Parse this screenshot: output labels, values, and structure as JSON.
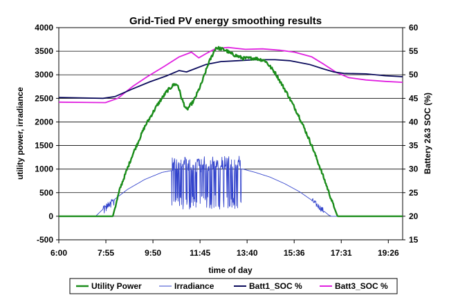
{
  "chart_data": {
    "type": "line",
    "title": "Grid-Tied PV energy smoothing results",
    "xlabel": "time of day",
    "ylabel": "utility power, irradiance",
    "y2label": "Battery 2&3 SOC (%)",
    "x_ticks": [
      "6:00",
      "7:55",
      "9:50",
      "11:45",
      "13:40",
      "15:36",
      "17:31",
      "19:26"
    ],
    "x_range_hours": [
      6.0,
      20.0
    ],
    "ylim": [
      -500,
      4000
    ],
    "y_ticks": [
      -500,
      0,
      500,
      1000,
      1500,
      2000,
      2500,
      3000,
      3500,
      4000
    ],
    "y2lim": [
      15,
      60
    ],
    "y2_ticks": [
      15,
      20,
      25,
      30,
      35,
      40,
      45,
      50,
      55,
      60
    ],
    "grid": true,
    "legend_position": "bottom",
    "series": [
      {
        "name": "Utility Power",
        "axis": "left",
        "color": "#1a8c1a",
        "points": [
          [
            6.0,
            0
          ],
          [
            7.5,
            0
          ],
          [
            8.2,
            0
          ],
          [
            8.5,
            600
          ],
          [
            9.0,
            1300
          ],
          [
            9.5,
            1900
          ],
          [
            10.0,
            2350
          ],
          [
            10.4,
            2650
          ],
          [
            10.7,
            2800
          ],
          [
            10.85,
            2780
          ],
          [
            11.0,
            2500
          ],
          [
            11.2,
            2250
          ],
          [
            11.5,
            2450
          ],
          [
            11.8,
            2800
          ],
          [
            12.1,
            3250
          ],
          [
            12.4,
            3580
          ],
          [
            12.8,
            3520
          ],
          [
            13.0,
            3450
          ],
          [
            13.5,
            3350
          ],
          [
            14.0,
            3350
          ],
          [
            14.4,
            3300
          ],
          [
            14.8,
            3050
          ],
          [
            15.3,
            2600
          ],
          [
            15.8,
            2100
          ],
          [
            16.3,
            1500
          ],
          [
            16.8,
            800
          ],
          [
            17.2,
            200
          ],
          [
            17.35,
            0
          ],
          [
            20.0,
            0
          ]
        ]
      },
      {
        "name": "Irradiance",
        "axis": "left",
        "color": "#3344cc",
        "points": [
          [
            6.0,
            0
          ],
          [
            7.5,
            0
          ],
          [
            7.8,
            150
          ],
          [
            8.2,
            330
          ],
          [
            8.8,
            570
          ],
          [
            9.5,
            780
          ],
          [
            10.2,
            930
          ],
          [
            10.8,
            990
          ],
          [
            11.2,
            1000
          ],
          [
            11.8,
            1010
          ],
          [
            12.5,
            1020
          ],
          [
            13.0,
            1030
          ],
          [
            13.5,
            1000
          ],
          [
            14.0,
            930
          ],
          [
            14.6,
            830
          ],
          [
            15.2,
            690
          ],
          [
            15.8,
            520
          ],
          [
            16.3,
            340
          ],
          [
            16.7,
            150
          ],
          [
            17.0,
            20
          ],
          [
            17.1,
            0
          ],
          [
            20.0,
            0
          ]
        ],
        "noise_window_hours": [
          10.6,
          13.45
        ],
        "noise_low": 150,
        "noise_high": 1280
      },
      {
        "name": "Batt1_SOC %",
        "axis": "right",
        "color": "#0b0b5c",
        "points": [
          [
            6.0,
            45.2
          ],
          [
            7.8,
            45.0
          ],
          [
            8.3,
            45.4
          ],
          [
            9.0,
            47.0
          ],
          [
            9.7,
            48.5
          ],
          [
            10.4,
            49.8
          ],
          [
            10.9,
            50.9
          ],
          [
            11.2,
            50.6
          ],
          [
            11.5,
            51.2
          ],
          [
            12.0,
            52.2
          ],
          [
            12.6,
            52.8
          ],
          [
            13.3,
            53.0
          ],
          [
            14.0,
            53.2
          ],
          [
            14.8,
            53.2
          ],
          [
            15.4,
            53.0
          ],
          [
            16.2,
            52.2
          ],
          [
            16.8,
            51.2
          ],
          [
            17.2,
            50.6
          ],
          [
            17.6,
            50.3
          ],
          [
            18.5,
            50.2
          ],
          [
            19.3,
            49.8
          ],
          [
            20.0,
            49.6
          ]
        ]
      },
      {
        "name": "Batt3_SOC %",
        "axis": "right",
        "color": "#e020e0",
        "points": [
          [
            6.0,
            44.2
          ],
          [
            7.9,
            44.1
          ],
          [
            8.4,
            45.0
          ],
          [
            9.0,
            47.5
          ],
          [
            9.6,
            49.6
          ],
          [
            10.3,
            51.8
          ],
          [
            10.9,
            53.8
          ],
          [
            11.4,
            54.8
          ],
          [
            11.7,
            53.6
          ],
          [
            12.0,
            54.5
          ],
          [
            12.4,
            55.6
          ],
          [
            12.9,
            55.8
          ],
          [
            13.6,
            55.4
          ],
          [
            14.3,
            55.5
          ],
          [
            15.0,
            55.2
          ],
          [
            15.6,
            54.8
          ],
          [
            16.3,
            53.8
          ],
          [
            16.8,
            52.2
          ],
          [
            17.3,
            50.5
          ],
          [
            17.8,
            49.4
          ],
          [
            18.5,
            48.9
          ],
          [
            19.3,
            48.6
          ],
          [
            20.0,
            48.4
          ]
        ]
      }
    ]
  }
}
